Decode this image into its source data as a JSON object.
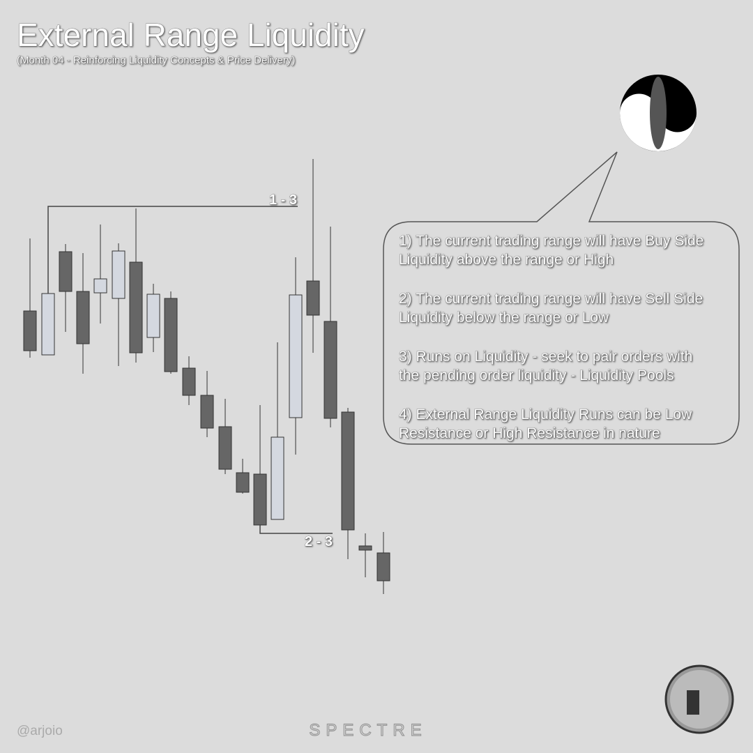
{
  "header": {
    "title": "External Range Liquidity",
    "subtitle": "(Month 04 - Reinforcing Liquidity Concepts & Price Delivery)"
  },
  "chart": {
    "range_high_label": "1 - 3",
    "range_low_label": "2 - 3"
  },
  "callout": {
    "points": [
      [
        "1) The current trading range will have Buy Side",
        "Liquidity above the range or High"
      ],
      [
        "2) The current trading range will have Sell Side",
        "Liquidity below the range or Low"
      ],
      [
        "3) Runs on Liquidity - seek to pair orders with",
        "the pending order liquidity - Liquidity Pools"
      ],
      [
        "4) External Range Liquidity Runs can be Low",
        "Resistance or High Resistance in nature"
      ]
    ]
  },
  "footer": {
    "handle": "@arjoio",
    "brand": "SPECTRE"
  }
}
